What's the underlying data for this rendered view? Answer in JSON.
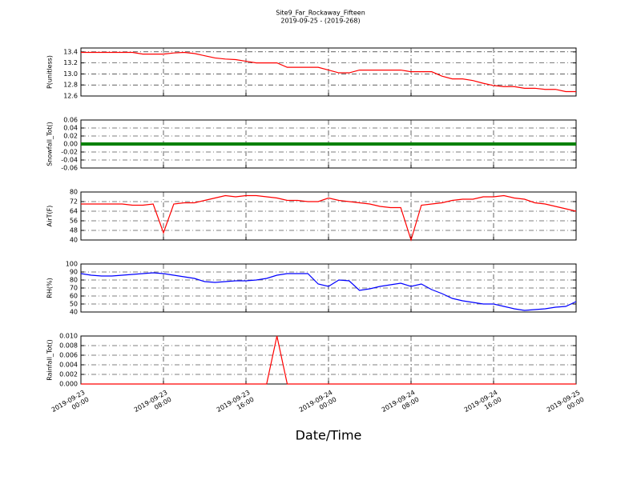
{
  "chart_data": [
    {
      "type": "line",
      "title": "Site9_Far_Rockaway_Fifteen",
      "subtitle": "2019-09-25 - (2019-268)",
      "ylabel": "P(unitless)",
      "color": "#ff0000",
      "grid": true,
      "x": [
        "2019-09-23 00:00",
        "2019-09-23 01:00",
        "2019-09-23 02:00",
        "2019-09-23 03:00",
        "2019-09-23 04:00",
        "2019-09-23 05:00",
        "2019-09-23 06:00",
        "2019-09-23 07:00",
        "2019-09-23 08:00",
        "2019-09-23 09:00",
        "2019-09-23 10:00",
        "2019-09-23 11:00",
        "2019-09-23 12:00",
        "2019-09-23 13:00",
        "2019-09-23 14:00",
        "2019-09-23 15:00",
        "2019-09-23 16:00",
        "2019-09-23 17:00",
        "2019-09-23 18:00",
        "2019-09-23 19:00",
        "2019-09-23 20:00",
        "2019-09-23 21:00",
        "2019-09-23 22:00",
        "2019-09-23 23:00",
        "2019-09-24 00:00",
        "2019-09-24 01:00",
        "2019-09-24 02:00",
        "2019-09-24 03:00",
        "2019-09-24 04:00",
        "2019-09-24 05:00",
        "2019-09-24 06:00",
        "2019-09-24 07:00",
        "2019-09-24 08:00",
        "2019-09-24 09:00",
        "2019-09-24 10:00",
        "2019-09-24 11:00",
        "2019-09-24 12:00",
        "2019-09-24 13:00",
        "2019-09-24 14:00",
        "2019-09-24 15:00",
        "2019-09-24 16:00",
        "2019-09-24 17:00",
        "2019-09-24 18:00",
        "2019-09-24 19:00",
        "2019-09-24 20:00",
        "2019-09-24 21:00",
        "2019-09-24 22:00",
        "2019-09-24 23:00",
        "2019-09-25 00:00"
      ],
      "values": [
        13.39,
        13.39,
        13.39,
        13.39,
        13.39,
        13.39,
        13.36,
        13.36,
        13.36,
        13.38,
        13.39,
        13.37,
        13.33,
        13.29,
        13.27,
        13.26,
        13.23,
        13.2,
        13.2,
        13.2,
        13.12,
        13.12,
        13.12,
        13.12,
        13.07,
        13.02,
        13.02,
        13.07,
        13.07,
        13.07,
        13.07,
        13.07,
        13.04,
        13.04,
        13.04,
        12.96,
        12.91,
        12.91,
        12.88,
        12.83,
        12.79,
        12.77,
        12.77,
        12.74,
        12.74,
        12.72,
        12.72,
        12.68,
        12.68
      ],
      "xlim": [
        "2019-09-23 00:00",
        "2019-09-25 00:00"
      ],
      "ylim": [
        12.6,
        13.47
      ],
      "yticks": [
        12.6,
        12.8,
        {
          "value": 13.0,
          "label": "13.0"
        },
        13.2,
        13.4
      ]
    },
    {
      "type": "line",
      "ylabel": "Snowfall_Tot()",
      "color": "#008000",
      "grid": true,
      "x": [
        "2019-09-23 00:00",
        "2019-09-23 01:00",
        "2019-09-23 02:00",
        "2019-09-23 03:00",
        "2019-09-23 04:00",
        "2019-09-23 05:00",
        "2019-09-23 06:00",
        "2019-09-23 07:00",
        "2019-09-23 08:00",
        "2019-09-23 09:00",
        "2019-09-23 10:00",
        "2019-09-23 11:00",
        "2019-09-23 12:00",
        "2019-09-23 13:00",
        "2019-09-23 14:00",
        "2019-09-23 15:00",
        "2019-09-23 16:00",
        "2019-09-23 17:00",
        "2019-09-23 18:00",
        "2019-09-23 19:00",
        "2019-09-23 20:00",
        "2019-09-23 21:00",
        "2019-09-23 22:00",
        "2019-09-23 23:00",
        "2019-09-24 00:00",
        "2019-09-24 01:00",
        "2019-09-24 02:00",
        "2019-09-24 03:00",
        "2019-09-24 04:00",
        "2019-09-24 05:00",
        "2019-09-24 06:00",
        "2019-09-24 07:00",
        "2019-09-24 08:00",
        "2019-09-24 09:00",
        "2019-09-24 10:00",
        "2019-09-24 11:00",
        "2019-09-24 12:00",
        "2019-09-24 13:00",
        "2019-09-24 14:00",
        "2019-09-24 15:00",
        "2019-09-24 16:00",
        "2019-09-24 17:00",
        "2019-09-24 18:00",
        "2019-09-24 19:00",
        "2019-09-24 20:00",
        "2019-09-24 21:00",
        "2019-09-24 22:00",
        "2019-09-24 23:00",
        "2019-09-25 00:00"
      ],
      "values": [
        0,
        0,
        0,
        0,
        0,
        0,
        0,
        0,
        0,
        0,
        0,
        0,
        0,
        0,
        0,
        0,
        0,
        0,
        0,
        0,
        0,
        0,
        0,
        0,
        0,
        0,
        0,
        0,
        0,
        0,
        0,
        0,
        0,
        0,
        0,
        0,
        0,
        0,
        0,
        0,
        0,
        0,
        0,
        0,
        0,
        0,
        0,
        0,
        0
      ],
      "xlim": [
        "2019-09-23 00:00",
        "2019-09-25 00:00"
      ],
      "ylim": [
        -0.06,
        0.06
      ],
      "yticks": [
        -0.06,
        -0.04,
        -0.02,
        {
          "value": 0,
          "label": "0.00"
        },
        0.02,
        0.04,
        0.06
      ]
    },
    {
      "type": "line",
      "ylabel": "AirT(F)",
      "color": "#ff0000",
      "grid": true,
      "x": [
        "2019-09-23 00:00",
        "2019-09-23 01:00",
        "2019-09-23 02:00",
        "2019-09-23 03:00",
        "2019-09-23 04:00",
        "2019-09-23 05:00",
        "2019-09-23 06:00",
        "2019-09-23 07:00",
        "2019-09-23 08:00",
        "2019-09-23 09:00",
        "2019-09-23 10:00",
        "2019-09-23 11:00",
        "2019-09-23 12:00",
        "2019-09-23 13:00",
        "2019-09-23 14:00",
        "2019-09-23 15:00",
        "2019-09-23 16:00",
        "2019-09-23 17:00",
        "2019-09-23 18:00",
        "2019-09-23 19:00",
        "2019-09-23 20:00",
        "2019-09-23 21:00",
        "2019-09-23 22:00",
        "2019-09-23 23:00",
        "2019-09-24 00:00",
        "2019-09-24 01:00",
        "2019-09-24 02:00",
        "2019-09-24 03:00",
        "2019-09-24 04:00",
        "2019-09-24 05:00",
        "2019-09-24 06:00",
        "2019-09-24 07:00",
        "2019-09-24 08:00",
        "2019-09-24 09:00",
        "2019-09-24 10:00",
        "2019-09-24 11:00",
        "2019-09-24 12:00",
        "2019-09-24 13:00",
        "2019-09-24 14:00",
        "2019-09-24 15:00",
        "2019-09-24 16:00",
        "2019-09-24 17:00",
        "2019-09-24 18:00",
        "2019-09-24 19:00",
        "2019-09-24 20:00",
        "2019-09-24 21:00",
        "2019-09-24 22:00",
        "2019-09-24 23:00",
        "2019-09-25 00:00"
      ],
      "values": [
        70,
        70,
        70,
        70,
        70,
        69,
        69,
        70,
        46,
        70,
        71,
        71,
        73,
        75,
        77,
        76,
        77,
        77,
        76,
        75,
        73,
        73,
        72,
        72,
        75,
        73,
        72,
        71,
        70,
        68,
        67,
        67,
        40,
        69,
        70,
        71,
        73,
        74,
        74,
        76,
        76,
        77,
        75,
        74,
        71,
        70,
        68,
        66,
        64
      ],
      "xlim": [
        "2019-09-23 00:00",
        "2019-09-25 00:00"
      ],
      "ylim": [
        40,
        80
      ],
      "yticks": [
        40,
        48,
        56,
        64,
        72,
        80
      ]
    },
    {
      "type": "line",
      "ylabel": "RH(%)",
      "color": "#0000ff",
      "grid": true,
      "x": [
        "2019-09-23 00:00",
        "2019-09-23 01:00",
        "2019-09-23 02:00",
        "2019-09-23 03:00",
        "2019-09-23 04:00",
        "2019-09-23 05:00",
        "2019-09-23 06:00",
        "2019-09-23 07:00",
        "2019-09-23 08:00",
        "2019-09-23 09:00",
        "2019-09-23 10:00",
        "2019-09-23 11:00",
        "2019-09-23 12:00",
        "2019-09-23 13:00",
        "2019-09-23 14:00",
        "2019-09-23 15:00",
        "2019-09-23 16:00",
        "2019-09-23 17:00",
        "2019-09-23 18:00",
        "2019-09-23 19:00",
        "2019-09-23 20:00",
        "2019-09-23 21:00",
        "2019-09-23 22:00",
        "2019-09-23 23:00",
        "2019-09-24 00:00",
        "2019-09-24 01:00",
        "2019-09-24 02:00",
        "2019-09-24 03:00",
        "2019-09-24 04:00",
        "2019-09-24 05:00",
        "2019-09-24 06:00",
        "2019-09-24 07:00",
        "2019-09-24 08:00",
        "2019-09-24 09:00",
        "2019-09-24 10:00",
        "2019-09-24 11:00",
        "2019-09-24 12:00",
        "2019-09-24 13:00",
        "2019-09-24 14:00",
        "2019-09-24 15:00",
        "2019-09-24 16:00",
        "2019-09-24 17:00",
        "2019-09-24 18:00",
        "2019-09-24 19:00",
        "2019-09-24 20:00",
        "2019-09-24 21:00",
        "2019-09-24 22:00",
        "2019-09-24 23:00",
        "2019-09-25 00:00"
      ],
      "values": [
        88,
        86,
        85,
        85,
        86,
        87,
        88,
        89,
        88,
        86,
        84,
        82,
        78,
        77,
        78,
        79,
        79,
        80,
        82,
        86,
        88,
        88,
        88,
        75,
        72,
        80,
        79,
        67,
        69,
        72,
        74,
        76,
        72,
        75,
        68,
        63,
        57,
        54,
        52,
        50,
        50,
        47,
        44,
        42,
        43,
        44,
        46,
        47,
        53
      ],
      "xlim": [
        "2019-09-23 00:00",
        "2019-09-25 00:00"
      ],
      "ylim": [
        40,
        100
      ],
      "yticks": [
        40,
        50,
        60,
        70,
        80,
        90,
        100
      ]
    },
    {
      "type": "line",
      "ylabel": "Rainfall_Tot()",
      "xlabel": "Date/Time",
      "color": "#ff0000",
      "grid": true,
      "x": [
        "2019-09-23 00:00",
        "2019-09-23 01:00",
        "2019-09-23 02:00",
        "2019-09-23 03:00",
        "2019-09-23 04:00",
        "2019-09-23 05:00",
        "2019-09-23 06:00",
        "2019-09-23 07:00",
        "2019-09-23 08:00",
        "2019-09-23 09:00",
        "2019-09-23 10:00",
        "2019-09-23 11:00",
        "2019-09-23 12:00",
        "2019-09-23 13:00",
        "2019-09-23 14:00",
        "2019-09-23 15:00",
        "2019-09-23 16:00",
        "2019-09-23 17:00",
        "2019-09-23 18:00",
        "2019-09-23 19:00",
        "2019-09-23 20:00",
        "2019-09-23 21:00",
        "2019-09-23 22:00",
        "2019-09-23 23:00",
        "2019-09-24 00:00",
        "2019-09-24 01:00",
        "2019-09-24 02:00",
        "2019-09-24 03:00",
        "2019-09-24 04:00",
        "2019-09-24 05:00",
        "2019-09-24 06:00",
        "2019-09-24 07:00",
        "2019-09-24 08:00",
        "2019-09-24 09:00",
        "2019-09-24 10:00",
        "2019-09-24 11:00",
        "2019-09-24 12:00",
        "2019-09-24 13:00",
        "2019-09-24 14:00",
        "2019-09-24 15:00",
        "2019-09-24 16:00",
        "2019-09-24 17:00",
        "2019-09-24 18:00",
        "2019-09-24 19:00",
        "2019-09-24 20:00",
        "2019-09-24 21:00",
        "2019-09-24 22:00",
        "2019-09-24 23:00",
        "2019-09-25 00:00"
      ],
      "values": [
        0,
        0,
        0,
        0,
        0,
        0,
        0,
        0,
        0,
        0,
        0,
        0,
        0,
        0,
        0,
        0,
        0,
        0,
        0,
        0.01,
        0,
        0,
        0,
        0,
        0,
        0,
        0,
        0,
        0,
        0,
        0,
        0,
        0,
        0,
        0,
        0,
        0,
        0,
        0,
        0,
        0,
        0,
        0,
        0,
        0,
        0,
        0,
        0,
        0
      ],
      "xlim": [
        "2019-09-23 00:00",
        "2019-09-25 00:00"
      ],
      "ylim": [
        0,
        0.01
      ],
      "yticks": [
        {
          "value": 0,
          "label": "0.000"
        },
        {
          "value": 0.002,
          "label": "0.002"
        },
        {
          "value": 0.004,
          "label": "0.004"
        },
        {
          "value": 0.006,
          "label": "0.006"
        },
        {
          "value": 0.008,
          "label": "0.008"
        },
        {
          "value": 0.01,
          "label": "0.010"
        }
      ],
      "xticks": [
        {
          "value": "2019-09-23 00:00",
          "label": "2019-09-23\n00:00"
        },
        {
          "value": "2019-09-23 08:00",
          "label": "2019-09-23\n08:00"
        },
        {
          "value": "2019-09-23 16:00",
          "label": "2019-09-23\n16:00"
        },
        {
          "value": "2019-09-24 00:00",
          "label": "2019-09-24\n00:00"
        },
        {
          "value": "2019-09-24 08:00",
          "label": "2019-09-24\n08:00"
        },
        {
          "value": "2019-09-24 16:00",
          "label": "2019-09-24\n16:00"
        },
        {
          "value": "2019-09-25 00:00",
          "label": "2019-09-25\n00:00"
        }
      ]
    }
  ]
}
